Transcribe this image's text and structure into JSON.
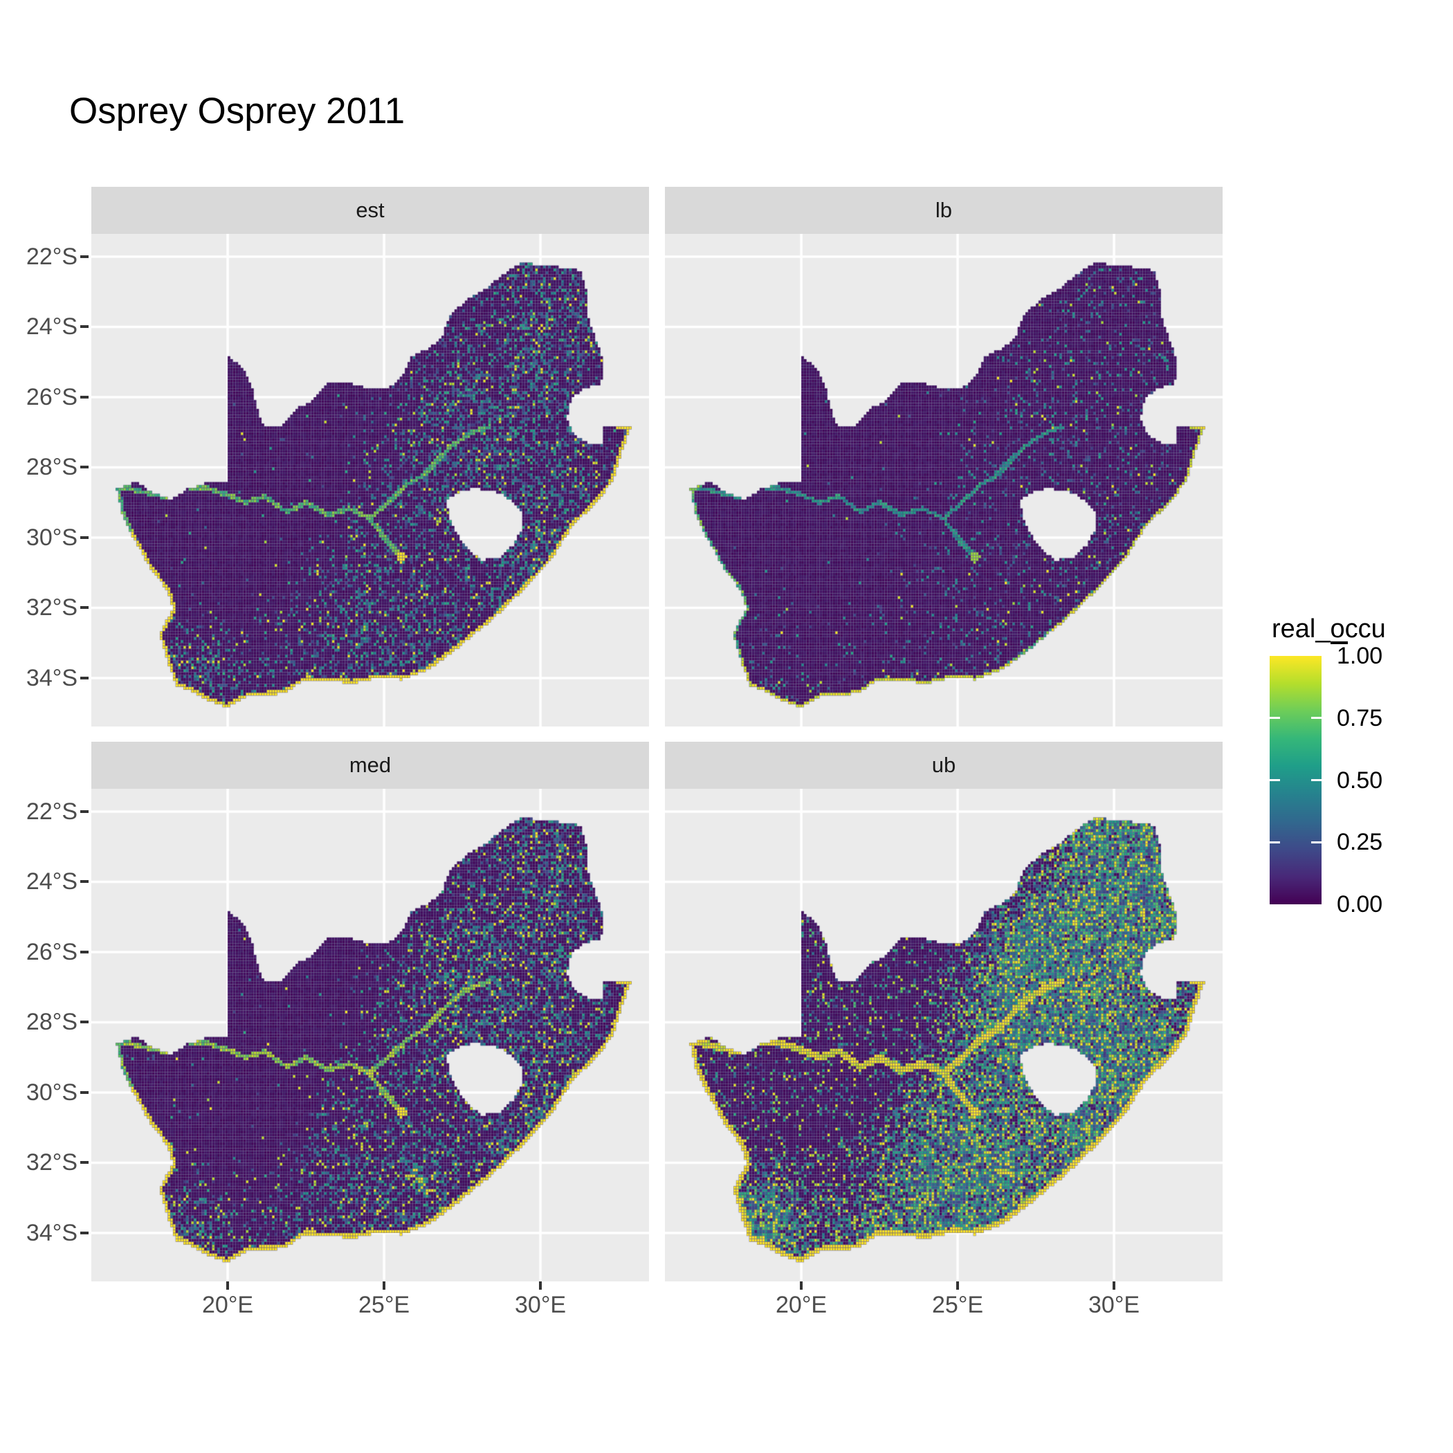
{
  "title": "Osprey Osprey 2011",
  "facets": [
    {
      "label": "est"
    },
    {
      "label": "lb"
    },
    {
      "label": "med"
    },
    {
      "label": "ub"
    }
  ],
  "axes": {
    "y_ticks": [
      "22°S",
      "24°S",
      "26°S",
      "28°S",
      "30°S",
      "32°S",
      "34°S"
    ],
    "y_values": [
      -22,
      -24,
      -26,
      -28,
      -30,
      -32,
      -34
    ],
    "x_ticks": [
      "20°E",
      "25°E",
      "30°E"
    ],
    "x_values": [
      20,
      25,
      30
    ]
  },
  "legend": {
    "title": "real_occu",
    "labels": [
      "1.00",
      "0.75",
      "0.50",
      "0.25",
      "0.00"
    ],
    "values": [
      1.0,
      0.75,
      0.5,
      0.25,
      0.0
    ]
  },
  "colors": {
    "panel_bg": "#ebebeb",
    "strip_bg": "#d9d9d9",
    "gridline": "#ffffff",
    "axis_text": "#4d4d4d",
    "tick_mark": "#333333",
    "cell_gap": "#453a75",
    "background": "#ffffff"
  },
  "chart_data": {
    "type": "heatmap",
    "subtype": "faceted-raster-map",
    "region": "South Africa",
    "title": "Osprey Osprey 2011",
    "facet_variable_values": [
      "est",
      "lb",
      "med",
      "ub"
    ],
    "resolution_deg": 0.08333,
    "x_range": [
      15.64,
      33.47
    ],
    "y_range": [
      -35.38,
      -21.35
    ],
    "legend_position": "right",
    "color_scale": {
      "name": "viridis",
      "domain": [
        0,
        1
      ],
      "stops": [
        "#440154",
        "#482878",
        "#3e4a89",
        "#31688e",
        "#26828e",
        "#1f9e89",
        "#35b779",
        "#6dcd59",
        "#b4de2c",
        "#fde725"
      ]
    },
    "facet_params": [
      {
        "name": "est",
        "seed": 11,
        "density": 0.4,
        "bright": 0.1,
        "town": 0.006,
        "riverV": 0.74,
        "riverW": 0.068,
        "coastW": 0.1,
        "coastV": 1.0,
        "floor": 0.0,
        "spread": 0.5,
        "base": 0.16
      },
      {
        "name": "lb",
        "seed": 23,
        "density": 0.13,
        "bright": 0.07,
        "town": 0.003,
        "riverV": 0.55,
        "riverW": 0.06,
        "coastW": 0.07,
        "coastV": 0.85,
        "floor": 0.0,
        "spread": 0.45,
        "base": 0.16
      },
      {
        "name": "med",
        "seed": 37,
        "density": 0.46,
        "bright": 0.16,
        "town": 0.01,
        "riverV": 0.82,
        "riverW": 0.068,
        "coastW": 0.11,
        "coastV": 1.0,
        "floor": 0.0,
        "spread": 0.5,
        "base": 0.16
      },
      {
        "name": "ub",
        "seed": 51,
        "density": 1.05,
        "bright": 0.2,
        "town": 0.012,
        "riverV": 1.0,
        "riverW": 0.105,
        "coastW": 0.14,
        "coastV": 1.0,
        "floor": 0.12,
        "spread": 0.62,
        "base": 0.16
      }
    ],
    "outline": [
      [
        16.45,
        -28.62
      ],
      [
        17.1,
        -28.4
      ],
      [
        17.65,
        -28.75
      ],
      [
        18.2,
        -28.9
      ],
      [
        18.75,
        -28.6
      ],
      [
        19.3,
        -28.45
      ],
      [
        19.98,
        -28.42
      ],
      [
        19.98,
        -24.77
      ],
      [
        20.55,
        -25.25
      ],
      [
        20.8,
        -25.8
      ],
      [
        20.95,
        -26.35
      ],
      [
        21.15,
        -26.85
      ],
      [
        21.7,
        -26.87
      ],
      [
        22.15,
        -26.35
      ],
      [
        22.7,
        -26.12
      ],
      [
        23.25,
        -25.55
      ],
      [
        23.9,
        -25.6
      ],
      [
        24.5,
        -25.75
      ],
      [
        25.15,
        -25.73
      ],
      [
        25.55,
        -25.45
      ],
      [
        25.85,
        -24.85
      ],
      [
        26.45,
        -24.6
      ],
      [
        26.85,
        -24.3
      ],
      [
        27.1,
        -23.65
      ],
      [
        27.7,
        -23.2
      ],
      [
        28.2,
        -22.95
      ],
      [
        28.9,
        -22.45
      ],
      [
        29.4,
        -22.15
      ],
      [
        30.0,
        -22.25
      ],
      [
        30.65,
        -22.3
      ],
      [
        31.3,
        -22.4
      ],
      [
        31.5,
        -23.1
      ],
      [
        31.55,
        -23.85
      ],
      [
        31.75,
        -24.3
      ],
      [
        31.95,
        -24.75
      ],
      [
        32.0,
        -25.35
      ],
      [
        31.9,
        -25.62
      ],
      [
        31.4,
        -25.75
      ],
      [
        31.0,
        -26.05
      ],
      [
        30.85,
        -26.6
      ],
      [
        31.1,
        -27.1
      ],
      [
        31.55,
        -27.32
      ],
      [
        31.97,
        -27.32
      ],
      [
        32.02,
        -26.86
      ],
      [
        32.89,
        -26.86
      ],
      [
        32.55,
        -27.7
      ],
      [
        32.35,
        -28.35
      ],
      [
        31.85,
        -28.95
      ],
      [
        31.05,
        -29.65
      ],
      [
        30.25,
        -30.75
      ],
      [
        29.45,
        -31.5
      ],
      [
        28.45,
        -32.35
      ],
      [
        27.35,
        -33.15
      ],
      [
        26.4,
        -33.78
      ],
      [
        25.6,
        -34.05
      ],
      [
        24.85,
        -34.0
      ],
      [
        24.0,
        -34.15
      ],
      [
        23.3,
        -34.1
      ],
      [
        22.5,
        -34.05
      ],
      [
        21.75,
        -34.45
      ],
      [
        20.7,
        -34.5
      ],
      [
        19.95,
        -34.85
      ],
      [
        19.3,
        -34.6
      ],
      [
        18.8,
        -34.35
      ],
      [
        18.35,
        -34.2
      ],
      [
        18.2,
        -33.85
      ],
      [
        17.8,
        -32.75
      ],
      [
        18.25,
        -32.05
      ],
      [
        18.1,
        -31.55
      ],
      [
        17.5,
        -30.85
      ],
      [
        16.95,
        -29.95
      ],
      [
        16.6,
        -29.3
      ]
    ],
    "coast_start_index": 44,
    "lesotho_hole": [
      [
        27.0,
        -28.92
      ],
      [
        27.45,
        -28.7
      ],
      [
        27.8,
        -28.6
      ],
      [
        28.3,
        -28.65
      ],
      [
        28.75,
        -28.75
      ],
      [
        29.15,
        -29.0
      ],
      [
        29.45,
        -29.3
      ],
      [
        29.4,
        -29.75
      ],
      [
        29.15,
        -30.2
      ],
      [
        28.7,
        -30.55
      ],
      [
        28.15,
        -30.65
      ],
      [
        27.75,
        -30.42
      ],
      [
        27.4,
        -30.0
      ],
      [
        27.1,
        -29.45
      ]
    ],
    "rivers": [
      [
        [
          16.6,
          -28.55
        ],
        [
          17.4,
          -28.72
        ],
        [
          18.05,
          -28.85
        ],
        [
          18.65,
          -28.55
        ],
        [
          19.35,
          -28.6
        ],
        [
          20.0,
          -28.78
        ],
        [
          20.6,
          -29.0
        ],
        [
          21.2,
          -28.82
        ],
        [
          21.9,
          -29.28
        ],
        [
          22.5,
          -29.0
        ],
        [
          23.2,
          -29.35
        ],
        [
          23.9,
          -29.18
        ],
        [
          24.55,
          -29.45
        ]
      ],
      [
        [
          24.55,
          -29.45
        ],
        [
          24.9,
          -29.9
        ],
        [
          25.2,
          -30.2
        ],
        [
          25.55,
          -30.55
        ]
      ],
      [
        [
          24.55,
          -29.45
        ],
        [
          25.15,
          -29.0
        ],
        [
          25.7,
          -28.5
        ],
        [
          26.3,
          -28.2
        ],
        [
          26.85,
          -27.65
        ],
        [
          27.3,
          -27.3
        ],
        [
          27.85,
          -27.0
        ],
        [
          28.35,
          -26.85
        ]
      ]
    ],
    "gariep_point": [
      25.55,
      -30.55
    ],
    "hotspots": [
      [
        28.1,
        -26.15,
        1.25,
        0.95
      ],
      [
        26.9,
        -28.3,
        1.6,
        0.6
      ],
      [
        30.6,
        -29.6,
        1.5,
        0.9
      ],
      [
        29.9,
        -31.35,
        1.1,
        0.65
      ],
      [
        23.7,
        -33.95,
        1.8,
        0.55
      ],
      [
        18.75,
        -33.8,
        1.0,
        0.85
      ],
      [
        26.4,
        -33.0,
        1.4,
        0.55
      ],
      [
        31.0,
        -23.5,
        1.4,
        0.6
      ],
      [
        29.6,
        -22.6,
        1.0,
        0.5
      ],
      [
        30.85,
        -25.4,
        1.0,
        0.6
      ],
      [
        24.3,
        -30.7,
        1.3,
        0.35
      ]
    ],
    "coldspots": [
      [
        21.3,
        -27.8,
        2.6,
        -0.3
      ],
      [
        20.0,
        -30.5,
        2.2,
        -0.15
      ]
    ]
  }
}
